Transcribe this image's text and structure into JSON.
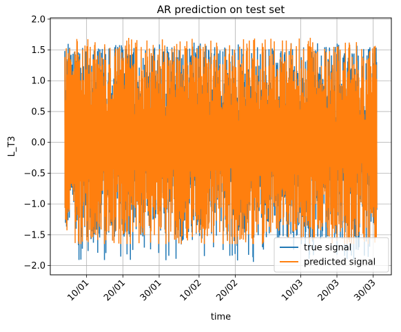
{
  "chart_data": {
    "type": "line",
    "title": "AR prediction on test set",
    "xlabel": "time",
    "ylabel": "L_T3",
    "ylim": [
      -2.15,
      2.02
    ],
    "yticks": [
      -2.0,
      -1.5,
      -1.0,
      -0.5,
      0.0,
      0.5,
      1.0,
      1.5,
      2.0
    ],
    "yticklabels": [
      "−2.0",
      "−1.5",
      "−1.0",
      "−0.5",
      "0.0",
      "0.5",
      "1.0",
      "1.5",
      "2.0"
    ],
    "xrange_dates": [
      "2022-12-31",
      "2023-04-04"
    ],
    "xticks": [
      "2023-01-10",
      "2023-01-20",
      "2023-01-30",
      "2023-02-10",
      "2023-02-20",
      "2023-03-10",
      "2023-03-20",
      "2023-03-30"
    ],
    "xticklabels": [
      "10/01",
      "20/01",
      "30/01",
      "10/02",
      "20/02",
      "10/03",
      "20/03",
      "30/03"
    ],
    "grid": true,
    "legend_position": "lower-right",
    "data_range": [
      "2023-01-04",
      "2023-03-31"
    ],
    "series": [
      {
        "name": "true signal",
        "color": "#1f77b4",
        "envelope": [
          -1.95,
          1.62
        ]
      },
      {
        "name": "predicted signal",
        "color": "#ff7f0e",
        "envelope": [
          -1.65,
          1.7
        ]
      }
    ]
  }
}
